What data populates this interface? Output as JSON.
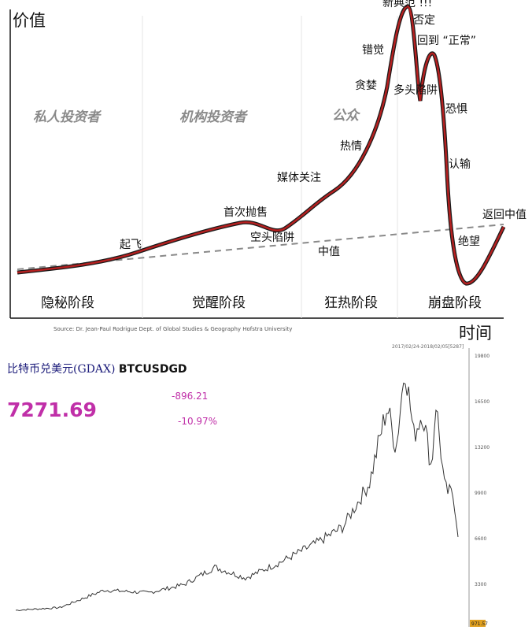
{
  "chart_data": [
    {
      "type": "line",
      "axis_y_label": "价值",
      "axis_x_label": "时间",
      "source": "Source: Dr. Jean-Paul Rodrigue Dept. of Global Studies & Geography Hofstra University",
      "phases": [
        "隐秘阶段",
        "觉醒阶段",
        "狂热阶段",
        "崩盘阶段"
      ],
      "participants": [
        "私人投资者",
        "机构投资者",
        "公众"
      ],
      "annotations": [
        "起飞",
        "首次抛售",
        "空头陷阱",
        "媒体关注",
        "热情",
        "贪婪",
        "错觉",
        "新典范 !!!",
        "否定",
        "回到 “正常”",
        "多头陷阱",
        "恐惧",
        "认输",
        "绝望",
        "返回中值",
        "中值"
      ],
      "colors": {
        "curve": "#b52020",
        "median": "#8a8a8a"
      }
    },
    {
      "type": "line",
      "title_cn": "比特币兑美元(GDAX)",
      "ticker": "BTCUSDGD",
      "last_price": "7271.69",
      "change": "-896.21",
      "change_pct": "-10.97%",
      "date_range": "2017/02/24-2018/02/05[5287]",
      "y_ticks": [
        "19800",
        "16500",
        "13200",
        "9900",
        "6600",
        "3300"
      ],
      "y_range": [
        0,
        19800
      ],
      "corner_label": "971.57",
      "colors": {
        "line": "#333333",
        "accent": "#c02fa8"
      }
    }
  ]
}
